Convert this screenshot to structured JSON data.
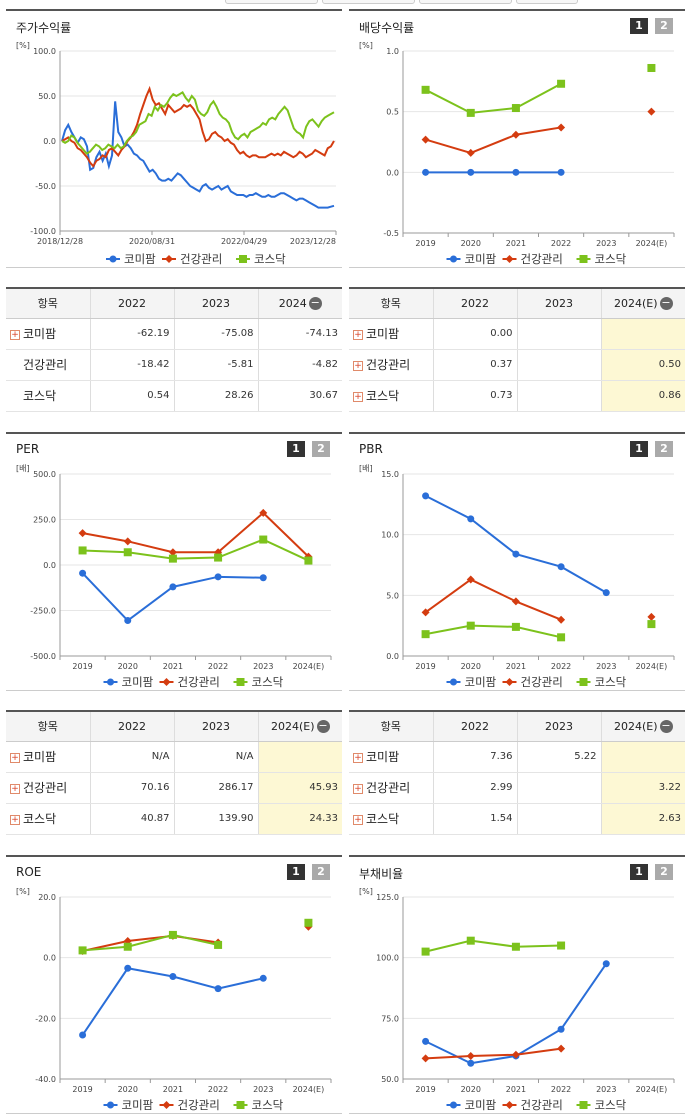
{
  "colors": {
    "komipam": "#2a6ed8",
    "health": "#d43c10",
    "kosdaq": "#7cc21c"
  },
  "legend": [
    "코미팜",
    "건강관리",
    "코스닥"
  ],
  "pager": {
    "one": "1",
    "two": "2"
  },
  "panels": {
    "stock": {
      "title": "주가수익률"
    },
    "div": {
      "title": "배당수익률"
    },
    "per": {
      "title": "PER"
    },
    "pbr": {
      "title": "PBR"
    },
    "roe": {
      "title": "ROE"
    },
    "debt": {
      "title": "부채비율"
    }
  },
  "tables": {
    "stock": {
      "header": [
        "항목",
        "2022",
        "2023",
        "2024"
      ],
      "rows": [
        {
          "name": "코미팜",
          "plus": true,
          "values": [
            "-62.19",
            "-75.08",
            "-74.13"
          ]
        },
        {
          "name": "건강관리",
          "plus": false,
          "values": [
            "-18.42",
            "-5.81",
            "-4.82"
          ]
        },
        {
          "name": "코스닥",
          "plus": false,
          "values": [
            "0.54",
            "28.26",
            "30.67"
          ]
        }
      ]
    },
    "div": {
      "header": [
        "항목",
        "2022",
        "2023",
        "2024(E)"
      ],
      "rows": [
        {
          "name": "코미팜",
          "plus": true,
          "values": [
            "0.00",
            "",
            ""
          ]
        },
        {
          "name": "건강관리",
          "plus": true,
          "values": [
            "0.37",
            "",
            "0.50"
          ]
        },
        {
          "name": "코스닥",
          "plus": true,
          "values": [
            "0.73",
            "",
            "0.86"
          ]
        }
      ]
    },
    "per": {
      "header": [
        "항목",
        "2022",
        "2023",
        "2024(E)"
      ],
      "rows": [
        {
          "name": "코미팜",
          "plus": true,
          "values": [
            "N/A",
            "N/A",
            ""
          ]
        },
        {
          "name": "건강관리",
          "plus": true,
          "values": [
            "70.16",
            "286.17",
            "45.93"
          ]
        },
        {
          "name": "코스닥",
          "plus": true,
          "values": [
            "40.87",
            "139.90",
            "24.33"
          ]
        }
      ]
    },
    "pbr": {
      "header": [
        "항목",
        "2022",
        "2023",
        "2024(E)"
      ],
      "rows": [
        {
          "name": "코미팜",
          "plus": true,
          "values": [
            "7.36",
            "5.22",
            ""
          ]
        },
        {
          "name": "건강관리",
          "plus": true,
          "values": [
            "2.99",
            "",
            "3.22"
          ]
        },
        {
          "name": "코스닥",
          "plus": true,
          "values": [
            "1.54",
            "",
            "2.63"
          ]
        }
      ]
    }
  },
  "chart_data": [
    {
      "id": "stock",
      "type": "line",
      "title": "주가수익률",
      "ylabel": "[%]",
      "ylim": [
        -100,
        100
      ],
      "yticks": [
        "100.0",
        "50.0",
        "0.0",
        "-50.0",
        "-100.0"
      ],
      "xticks": [
        "2018/12/28",
        "2020/08/31",
        "2022/04/29",
        "2023/12/28"
      ],
      "series": [
        {
          "name": "코미팜",
          "values": [
            0,
            12,
            18,
            10,
            4,
            -2,
            4,
            2,
            -6,
            -32,
            -30,
            -18,
            -12,
            -22,
            -14,
            -28,
            -16,
            44,
            10,
            4,
            -6,
            -4,
            -8,
            -14,
            -16,
            -20,
            -22,
            -28,
            -34,
            -32,
            -36,
            -42,
            -44,
            -44,
            -42,
            -44,
            -40,
            -36,
            -38,
            -42,
            -46,
            -50,
            -52,
            -54,
            -56,
            -50,
            -48,
            -52,
            -54,
            -52,
            -50,
            -54,
            -52,
            -50,
            -56,
            -58,
            -60,
            -60,
            -60,
            -62,
            -60,
            -60,
            -58,
            -60,
            -62,
            -62,
            -60,
            -62,
            -62,
            -60,
            -58,
            -58,
            -60,
            -62,
            -64,
            -66,
            -64,
            -64,
            -66,
            -68,
            -70,
            -72,
            -74,
            -74,
            -74,
            -74,
            -73,
            -72
          ]
        },
        {
          "name": "건강관리",
          "values": [
            0,
            2,
            4,
            0,
            -2,
            -8,
            -10,
            -14,
            -18,
            -24,
            -28,
            -22,
            -20,
            -16,
            -18,
            -10,
            -8,
            -12,
            -16,
            -10,
            -6,
            0,
            4,
            10,
            18,
            30,
            40,
            50,
            58,
            46,
            40,
            42,
            36,
            30,
            40,
            36,
            32,
            34,
            36,
            40,
            38,
            40,
            36,
            30,
            24,
            10,
            0,
            2,
            8,
            10,
            6,
            4,
            0,
            2,
            -2,
            -4,
            -10,
            -14,
            -12,
            -16,
            -18,
            -16,
            -16,
            -18,
            -18,
            -18,
            -16,
            -14,
            -16,
            -14,
            -16,
            -12,
            -14,
            -16,
            -18,
            -16,
            -12,
            -14,
            -18,
            -16,
            -14,
            -10,
            -12,
            -14,
            -16,
            -8,
            -6,
            0
          ]
        },
        {
          "name": "코스닥",
          "values": [
            0,
            -2,
            0,
            6,
            4,
            -2,
            -6,
            -10,
            -14,
            -12,
            -8,
            -4,
            -6,
            -10,
            -8,
            -4,
            -6,
            -8,
            -4,
            -8,
            -6,
            0,
            4,
            6,
            10,
            18,
            20,
            22,
            30,
            28,
            38,
            34,
            40,
            38,
            42,
            48,
            52,
            50,
            52,
            54,
            48,
            44,
            50,
            46,
            34,
            30,
            28,
            32,
            40,
            44,
            38,
            30,
            26,
            24,
            20,
            10,
            4,
            2,
            6,
            8,
            4,
            10,
            12,
            14,
            16,
            20,
            18,
            24,
            26,
            24,
            30,
            34,
            38,
            34,
            24,
            14,
            10,
            8,
            4,
            16,
            22,
            24,
            20,
            16,
            22,
            26,
            28,
            30,
            32
          ]
        }
      ]
    },
    {
      "id": "div",
      "type": "line",
      "title": "배당수익률",
      "ylabel": "[%]",
      "ylim": [
        -0.5,
        1.0
      ],
      "yticks": [
        "1.0",
        "0.5",
        "0.0",
        "-0.5"
      ],
      "categories": [
        "2019",
        "2020",
        "2021",
        "2022",
        "2023",
        "2024(E)"
      ],
      "series": [
        {
          "name": "코미팜",
          "values": [
            0.0,
            0.0,
            0.0,
            0.0,
            null,
            null
          ]
        },
        {
          "name": "건강관리",
          "values": [
            0.27,
            0.16,
            0.31,
            0.37,
            null,
            0.5
          ]
        },
        {
          "name": "코스닥",
          "values": [
            0.68,
            0.49,
            0.53,
            0.73,
            null,
            0.86
          ]
        }
      ]
    },
    {
      "id": "per",
      "type": "line",
      "title": "PER",
      "ylabel": "[배]",
      "ylim": [
        -500,
        500
      ],
      "yticks": [
        "500.0",
        "250.0",
        "0.0",
        "-250.0",
        "-500.0"
      ],
      "categories": [
        "2019",
        "2020",
        "2021",
        "2022",
        "2023",
        "2024(E)"
      ],
      "series": [
        {
          "name": "코미팜",
          "values": [
            -45,
            -305,
            -120,
            -65,
            -70,
            null
          ]
        },
        {
          "name": "건강관리",
          "values": [
            175,
            130,
            70,
            70.16,
            286.17,
            45.93
          ]
        },
        {
          "name": "코스닥",
          "values": [
            80,
            70,
            35,
            40.87,
            139.9,
            24.33
          ]
        }
      ]
    },
    {
      "id": "pbr",
      "type": "line",
      "title": "PBR",
      "ylabel": "[배]",
      "ylim": [
        0,
        15
      ],
      "yticks": [
        "15.0",
        "10.0",
        "5.0",
        "0.0"
      ],
      "categories": [
        "2019",
        "2020",
        "2021",
        "2022",
        "2023",
        "2024(E)"
      ],
      "series": [
        {
          "name": "코미팜",
          "values": [
            13.2,
            11.3,
            8.4,
            7.36,
            5.22,
            null
          ]
        },
        {
          "name": "건강관리",
          "values": [
            3.6,
            6.3,
            4.5,
            2.99,
            null,
            3.22
          ]
        },
        {
          "name": "코스닥",
          "values": [
            1.8,
            2.5,
            2.4,
            1.54,
            null,
            2.63
          ]
        }
      ]
    },
    {
      "id": "roe",
      "type": "line",
      "title": "ROE",
      "ylabel": "[%]",
      "ylim": [
        -40,
        20
      ],
      "yticks": [
        "20.0",
        "0.0",
        "-20.0",
        "-40.0"
      ],
      "categories": [
        "2019",
        "2020",
        "2021",
        "2022",
        "2023",
        "2024(E)"
      ],
      "series": [
        {
          "name": "코미팜",
          "values": [
            -25.5,
            -3.5,
            -6.2,
            -10.2,
            -6.8,
            null
          ]
        },
        {
          "name": "건강관리",
          "values": [
            2.2,
            5.5,
            7.2,
            5.0,
            null,
            10.2
          ]
        },
        {
          "name": "코스닥",
          "values": [
            2.4,
            3.6,
            7.5,
            4.2,
            null,
            11.5
          ]
        }
      ]
    },
    {
      "id": "debt",
      "type": "line",
      "title": "부채비율",
      "ylabel": "[%]",
      "ylim": [
        50,
        125
      ],
      "yticks": [
        "125.0",
        "100.0",
        "75.0",
        "50.0"
      ],
      "categories": [
        "2019",
        "2020",
        "2021",
        "2022",
        "2023",
        "2024(E)"
      ],
      "series": [
        {
          "name": "코미팜",
          "values": [
            65.5,
            56.5,
            59.5,
            70.5,
            97.5,
            null
          ]
        },
        {
          "name": "건강관리",
          "values": [
            58.5,
            59.5,
            60.0,
            62.5,
            null,
            null
          ]
        },
        {
          "name": "코스닥",
          "values": [
            102.5,
            107.0,
            104.5,
            105.0,
            null,
            null
          ]
        }
      ]
    }
  ]
}
